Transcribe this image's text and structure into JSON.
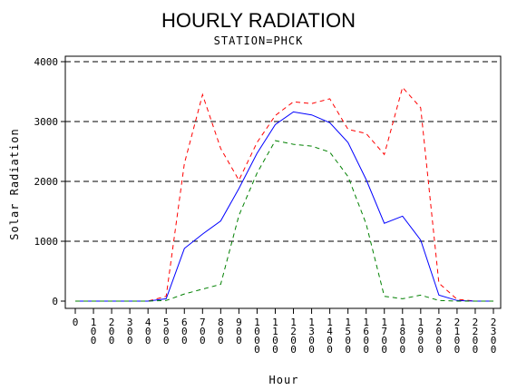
{
  "chart_data": {
    "type": "line",
    "title": "HOURLY RADIATION",
    "subtitle": "STATION=PHCK",
    "xlabel": "Hour",
    "ylabel": "Solar Radiation",
    "ylim": [
      0,
      4000
    ],
    "yticks": [
      "0",
      "1000",
      "2000",
      "3000",
      "4000"
    ],
    "gridlines": [
      1000,
      2000,
      3000,
      4000
    ],
    "grid_style": "dashed horizontal",
    "categories": [
      "0",
      "100",
      "200",
      "300",
      "400",
      "500",
      "600",
      "700",
      "800",
      "900",
      "1000",
      "1100",
      "1200",
      "1300",
      "1400",
      "1500",
      "1600",
      "1700",
      "1800",
      "1900",
      "2000",
      "2100",
      "2200",
      "2300"
    ],
    "series": [
      {
        "color": "#ff0000",
        "style": "dashed",
        "values": [
          0,
          0,
          0,
          0,
          0,
          80,
          2300,
          3450,
          2550,
          2020,
          2650,
          3100,
          3330,
          3300,
          3380,
          2870,
          2800,
          2450,
          3570,
          3230,
          300,
          30,
          0,
          0
        ]
      },
      {
        "color": "#0000ff",
        "style": "solid",
        "values": [
          0,
          0,
          0,
          0,
          0,
          40,
          880,
          1120,
          1340,
          1880,
          2470,
          2950,
          3160,
          3110,
          2980,
          2650,
          2030,
          1300,
          1420,
          1020,
          100,
          10,
          0,
          0
        ]
      },
      {
        "color": "#008000",
        "style": "dashed",
        "values": [
          0,
          0,
          0,
          0,
          0,
          10,
          120,
          200,
          280,
          1430,
          2140,
          2680,
          2620,
          2590,
          2490,
          2080,
          1290,
          80,
          40,
          100,
          10,
          0,
          0,
          0
        ]
      }
    ]
  }
}
